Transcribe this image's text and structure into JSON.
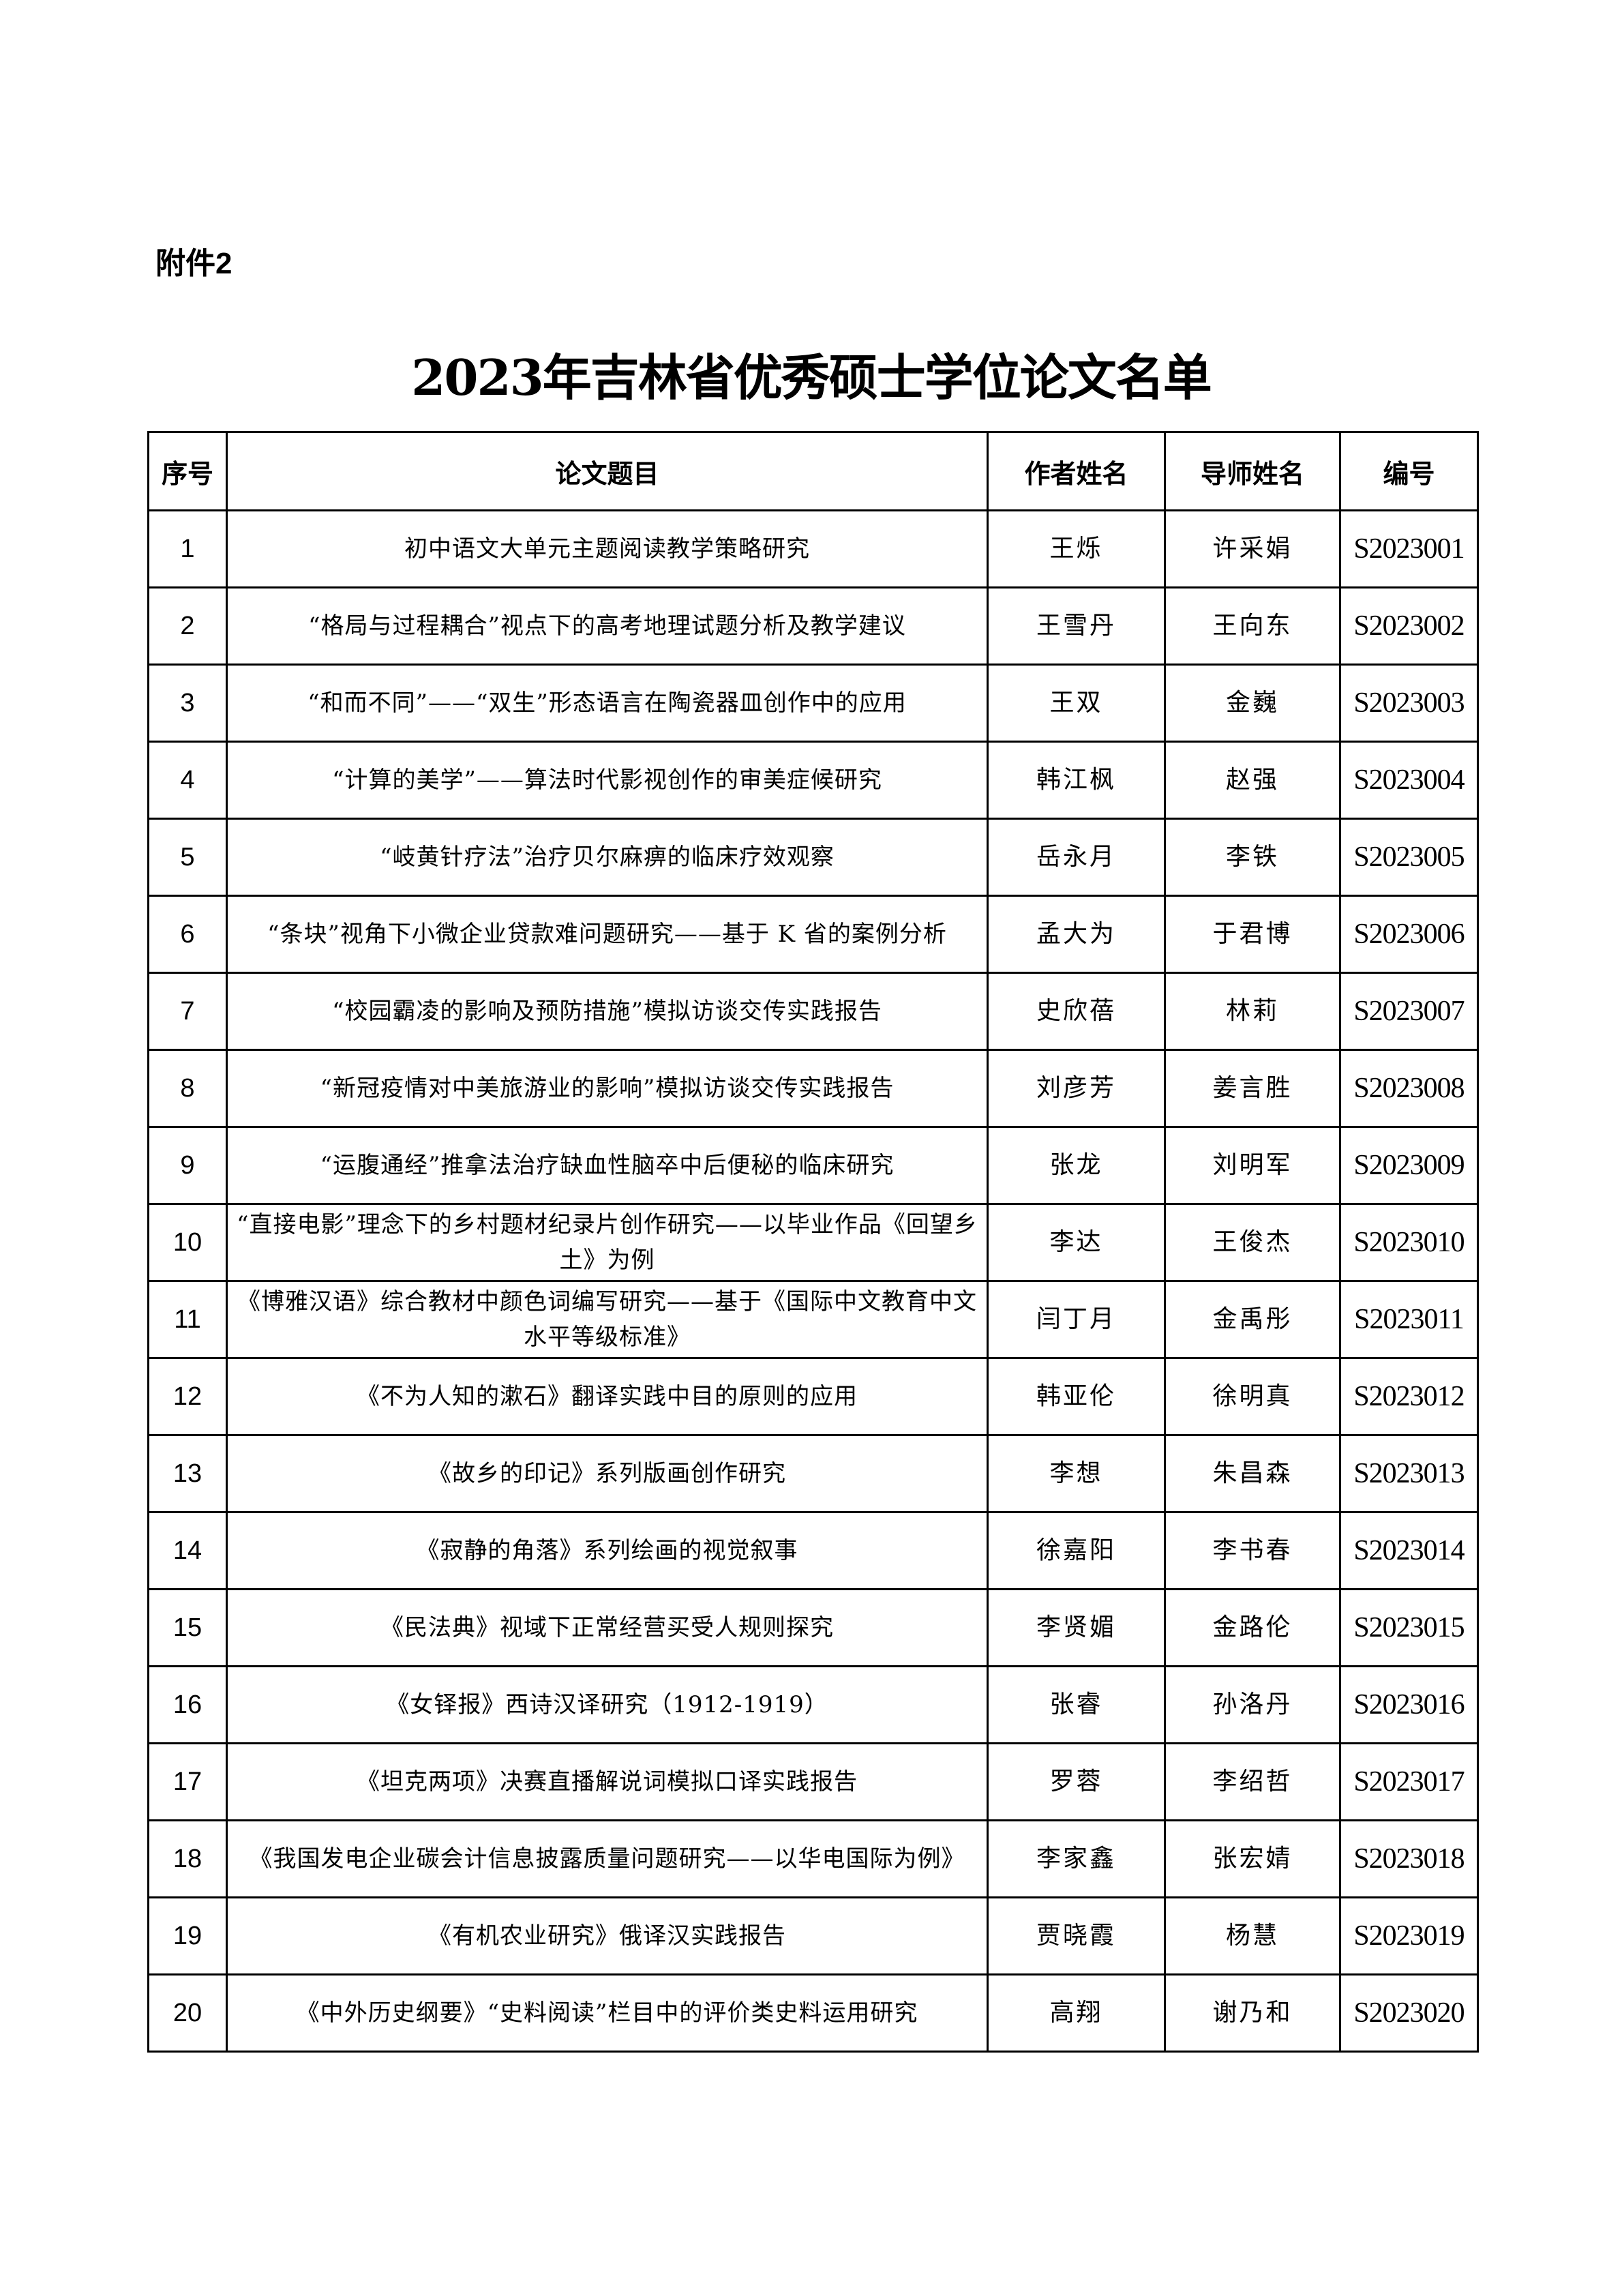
{
  "attachment_label": "附件2",
  "title": "2023年吉林省优秀硕士学位论文名单",
  "table": {
    "headers": [
      "序号",
      "论文题目",
      "作者姓名",
      "导师姓名",
      "编号"
    ],
    "rows": [
      {
        "no": "1",
        "title": "初中语文大单元主题阅读教学策略研究",
        "author": "王烁",
        "advisor": "许采娟",
        "code": "S2023001"
      },
      {
        "no": "2",
        "title": "“格局与过程耦合”视点下的高考地理试题分析及教学建议",
        "author": "王雪丹",
        "advisor": "王向东",
        "code": "S2023002"
      },
      {
        "no": "3",
        "title": "“和而不同”——“双生”形态语言在陶瓷器皿创作中的应用",
        "author": "王双",
        "advisor": "金巍",
        "code": "S2023003"
      },
      {
        "no": "4",
        "title": "“计算的美学”——算法时代影视创作的审美症候研究",
        "author": "韩江枫",
        "advisor": "赵强",
        "code": "S2023004"
      },
      {
        "no": "5",
        "title": "“岐黄针疗法”治疗贝尔麻痹的临床疗效观察",
        "author": "岳永月",
        "advisor": "李铁",
        "code": "S2023005"
      },
      {
        "no": "6",
        "title": "“条块”视角下小微企业贷款难问题研究——基于 K 省的案例分析",
        "author": "孟大为",
        "advisor": "于君博",
        "code": "S2023006"
      },
      {
        "no": "7",
        "title": "“校园霸凌的影响及预防措施”模拟访谈交传实践报告",
        "author": "史欣蓓",
        "advisor": "林莉",
        "code": "S2023007"
      },
      {
        "no": "8",
        "title": "“新冠疫情对中美旅游业的影响”模拟访谈交传实践报告",
        "author": "刘彦芳",
        "advisor": "姜言胜",
        "code": "S2023008"
      },
      {
        "no": "9",
        "title": "“运腹通经”推拿法治疗缺血性脑卒中后便秘的临床研究",
        "author": "张龙",
        "advisor": "刘明军",
        "code": "S2023009"
      },
      {
        "no": "10",
        "title": "“直接电影”理念下的乡村题材纪录片创作研究——以毕业作品《回望乡土》为例",
        "author": "李达",
        "advisor": "王俊杰",
        "code": "S2023010"
      },
      {
        "no": "11",
        "title": "《博雅汉语》综合教材中颜色词编写研究——基于《国际中文教育中文水平等级标准》",
        "author": "闫丁月",
        "advisor": "金禹彤",
        "code": "S2023011"
      },
      {
        "no": "12",
        "title": "《不为人知的漱石》翻译实践中目的原则的应用",
        "author": "韩亚伦",
        "advisor": "徐明真",
        "code": "S2023012"
      },
      {
        "no": "13",
        "title": "《故乡的印记》系列版画创作研究",
        "author": "李想",
        "advisor": "朱昌森",
        "code": "S2023013"
      },
      {
        "no": "14",
        "title": "《寂静的角落》系列绘画的视觉叙事",
        "author": "徐嘉阳",
        "advisor": "李书春",
        "code": "S2023014"
      },
      {
        "no": "15",
        "title": "《民法典》视域下正常经营买受人规则探究",
        "author": "李贤媚",
        "advisor": "金路伦",
        "code": "S2023015"
      },
      {
        "no": "16",
        "title": "《女铎报》西诗汉译研究（1912-1919）",
        "author": "张睿",
        "advisor": "孙洛丹",
        "code": "S2023016"
      },
      {
        "no": "17",
        "title": "《坦克两项》决赛直播解说词模拟口译实践报告",
        "author": "罗蓉",
        "advisor": "李绍哲",
        "code": "S2023017"
      },
      {
        "no": "18",
        "title": "《我国发电企业碳会计信息披露质量问题研究——以华电国际为例》",
        "author": "李家鑫",
        "advisor": "张宏婧",
        "code": "S2023018"
      },
      {
        "no": "19",
        "title": "《有机农业研究》俄译汉实践报告",
        "author": "贾晓霞",
        "advisor": "杨慧",
        "code": "S2023019"
      },
      {
        "no": "20",
        "title": "《中外历史纲要》“史料阅读”栏目中的评价类史料运用研究",
        "author": "高翔",
        "advisor": "谢乃和",
        "code": "S2023020"
      }
    ]
  }
}
